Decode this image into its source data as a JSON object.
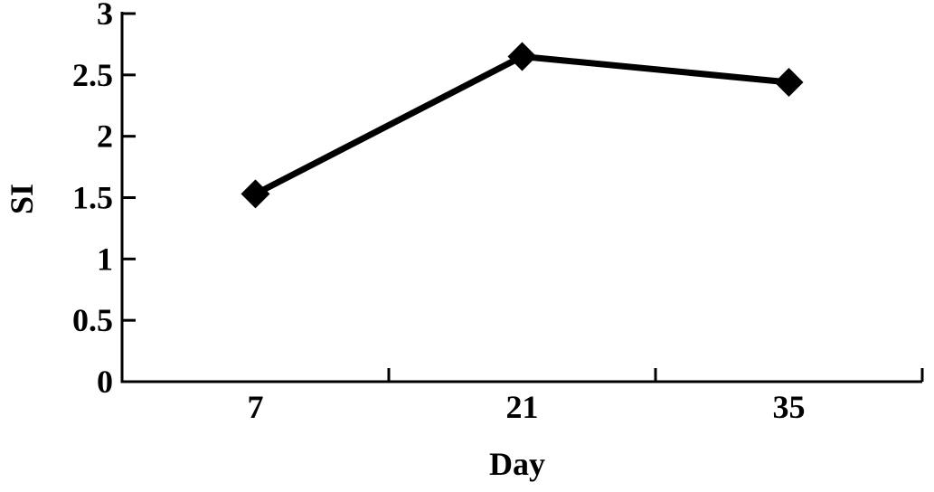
{
  "chart_data": {
    "type": "line",
    "categories": [
      "7",
      "21",
      "35"
    ],
    "series": [
      {
        "values": [
          1.53,
          2.65,
          2.44
        ]
      }
    ],
    "xlabel": "Day",
    "ylabel": "SI",
    "ylim": [
      0,
      3
    ],
    "yticks": [
      "0",
      "0.5",
      "1",
      "1.5",
      "2",
      "2.5",
      "3"
    ],
    "marker": "diamond",
    "grid": false,
    "legend": "none",
    "colors": {
      "line": "#000000",
      "axis": "#000000"
    }
  }
}
